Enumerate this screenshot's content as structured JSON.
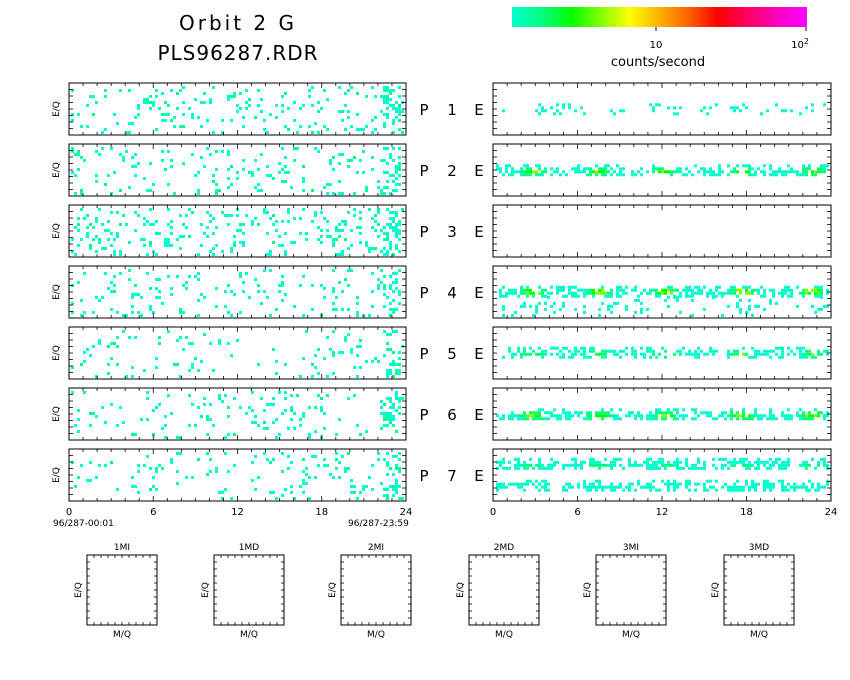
{
  "header": {
    "title": "Orbit 2 G",
    "filename": "PLS96287.RDR"
  },
  "colorbar": {
    "label": "counts/second",
    "tick_10": "10",
    "tick_100_base": "10",
    "tick_100_exp": "2",
    "colors": [
      "#00ffcc",
      "#00ff80",
      "#00ff00",
      "#80ff00",
      "#ffff00",
      "#ffb000",
      "#ff6000",
      "#ff0000",
      "#ff0060",
      "#ff00c0",
      "#ff00ff"
    ],
    "scale": "log"
  },
  "ylabel": "E/Q",
  "edge_label": "E",
  "panel_labels": [
    {
      "p": "P",
      "n": "1"
    },
    {
      "p": "P",
      "n": "2"
    },
    {
      "p": "P",
      "n": "3"
    },
    {
      "p": "P",
      "n": "4"
    },
    {
      "p": "P",
      "n": "5"
    },
    {
      "p": "P",
      "n": "6"
    },
    {
      "p": "P",
      "n": "7"
    }
  ],
  "x_ticks": [
    "0",
    "6",
    "12",
    "18",
    "24"
  ],
  "time_start": "96/287-00:01",
  "time_end": "96/287-23:59",
  "mq_panels": [
    {
      "title": "1MI",
      "xlabel": "M/Q",
      "ylabel": "E/Q"
    },
    {
      "title": "1MD",
      "xlabel": "M/Q",
      "ylabel": "E/Q"
    },
    {
      "title": "2MI",
      "xlabel": "M/Q",
      "ylabel": "E/Q"
    },
    {
      "title": "2MD",
      "xlabel": "M/Q",
      "ylabel": "E/Q"
    },
    {
      "title": "3MI",
      "xlabel": "M/Q",
      "ylabel": "E/Q"
    },
    {
      "title": "3MD",
      "xlabel": "M/Q",
      "ylabel": "E/Q"
    }
  ],
  "chart_data": {
    "type": "heatmap",
    "x_unit_hours": [
      0,
      24
    ],
    "x_ticks": [
      0,
      6,
      12,
      18,
      24
    ],
    "left_column": {
      "description_of_rows": [
        "P 1",
        "P 2",
        "P 3",
        "P 4",
        "P 5",
        "P 6",
        "P 7"
      ],
      "density": [
        0.1,
        0.09,
        0.14,
        0.08,
        0.05,
        0.07,
        0.08
      ],
      "dense_hours": [
        [
          22.3,
          23.6
        ]
      ]
    },
    "right_column": {
      "description_of_rows": [
        "P 1",
        "P 2",
        "P 3",
        "P 4",
        "P 5",
        "P 6",
        "P 7"
      ],
      "bands": [
        [
          {
            "y": 0.48,
            "h": 0.18,
            "d": 0.25,
            "hot": 0.0
          }
        ],
        [
          {
            "y": 0.5,
            "h": 0.22,
            "d": 0.75,
            "hot": 0.35
          }
        ],
        [],
        [
          {
            "y": 0.47,
            "h": 0.18,
            "d": 0.9,
            "hot": 0.55
          },
          {
            "y": 0.75,
            "h": 0.35,
            "d": 0.18,
            "hot": 0.0
          }
        ],
        [
          {
            "y": 0.48,
            "h": 0.2,
            "d": 0.75,
            "hot": 0.3
          }
        ],
        [
          {
            "y": 0.5,
            "h": 0.22,
            "d": 0.85,
            "hot": 0.45
          }
        ],
        [
          {
            "y": 0.28,
            "h": 0.22,
            "d": 0.85,
            "hot": 0.15
          },
          {
            "y": 0.7,
            "h": 0.22,
            "d": 0.75,
            "hot": 0.05
          }
        ]
      ],
      "peak_hours": [
        2.7,
        7.4,
        12.1,
        17.6,
        22.6
      ]
    },
    "mq_panels": [
      "1MI",
      "1MD",
      "2MI",
      "2MD",
      "3MI",
      "3MD"
    ]
  }
}
